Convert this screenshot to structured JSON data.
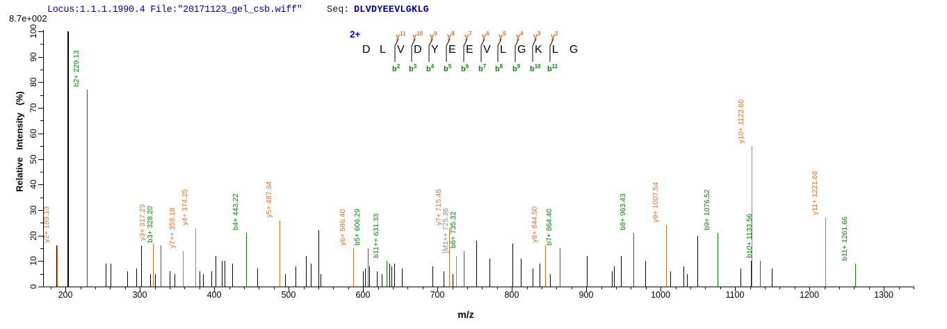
{
  "header": {
    "locus_line": "Locus:1.1.1.1990.4 File:\"20171123_gel_csb.wiff\"",
    "seq_label": "Seq:",
    "seq_value": "DLVDYEEVLGKLG",
    "max_intensity": "8.7e+002"
  },
  "chart_data": {
    "type": "bar",
    "subtype": "ms2-fragment-spectrum",
    "title": "",
    "xlabel": "m/z",
    "ylabel": "Relative Intensity (%)",
    "x_range": [
      170,
      1340
    ],
    "x_major_tick_start": 200,
    "x_major_tick_end": 1300,
    "x_major_tick_step": 100,
    "x_minor_tick_step": 20,
    "y_range": [
      0,
      100
    ],
    "y_major_tick_step": 10,
    "y_minor_tick_step": 5,
    "grid": false,
    "precursor_charge": "2+",
    "peptide": {
      "residues": [
        "D",
        "L",
        "V",
        "D",
        "Y",
        "E",
        "E",
        "V",
        "L",
        "G",
        "K",
        "L",
        "G"
      ],
      "cleavages": [
        {
          "after_residue": 2,
          "y_ion": "y11",
          "b_ion": "b2"
        },
        {
          "after_residue": 3,
          "y_ion": "y10",
          "b_ion": "b3"
        },
        {
          "after_residue": 4,
          "y_ion": "y9",
          "b_ion": "b4"
        },
        {
          "after_residue": 5,
          "y_ion": "y8",
          "b_ion": "b5"
        },
        {
          "after_residue": 6,
          "y_ion": "y7",
          "b_ion": "b6"
        },
        {
          "after_residue": 7,
          "y_ion": "y6",
          "b_ion": "b7"
        },
        {
          "after_residue": 8,
          "y_ion": "y5",
          "b_ion": "b8"
        },
        {
          "after_residue": 9,
          "y_ion": "y4",
          "b_ion": "b9"
        },
        {
          "after_residue": 10,
          "y_ion": "y3",
          "b_ion": "b10"
        },
        {
          "after_residue": 11,
          "y_ion": "y2",
          "b_ion": "b11"
        }
      ]
    },
    "labeled_peaks": [
      {
        "label": "y2+ 189.13",
        "mz": 189.13,
        "intensity_pct": 16,
        "series": "y"
      },
      {
        "label": "b2+ 229.13",
        "mz": 229.13,
        "intensity_pct": 77,
        "series": "b"
      },
      {
        "label": "y3+ 317.23",
        "mz": 317.23,
        "intensity_pct": 17,
        "series": "y"
      },
      {
        "label": "b3+ 328.20",
        "mz": 328.2,
        "intensity_pct": 16,
        "series": "b"
      },
      {
        "label": "y7++ 358.18",
        "mz": 358.18,
        "intensity_pct": 14,
        "series": "y"
      },
      {
        "label": "y4+ 374.25",
        "mz": 374.25,
        "intensity_pct": 23,
        "series": "y"
      },
      {
        "label": "b4+ 443.22",
        "mz": 443.22,
        "intensity_pct": 21,
        "series": "b"
      },
      {
        "label": "y5+ 487.34",
        "mz": 487.34,
        "intensity_pct": 26,
        "series": "y"
      },
      {
        "label": "y6+ 586.40",
        "mz": 586.4,
        "intensity_pct": 15,
        "series": "y"
      },
      {
        "label": "b5+ 606.29",
        "mz": 606.29,
        "intensity_pct": 15,
        "series": "b"
      },
      {
        "label": "b11++ 631.33",
        "mz": 631.33,
        "intensity_pct": 10,
        "series": "b"
      },
      {
        "label": "y7+ 715.45",
        "mz": 715.45,
        "intensity_pct": 23,
        "series": "y"
      },
      {
        "label": "[M1++ 725.36",
        "mz": 725.36,
        "intensity_pct": 12,
        "series": "precursor"
      },
      {
        "label": "b6+ 735.32",
        "mz": 735.32,
        "intensity_pct": 14,
        "series": "b"
      },
      {
        "label": "y8+ 844.50",
        "mz": 844.5,
        "intensity_pct": 16,
        "series": "y"
      },
      {
        "label": "b7+ 864.40",
        "mz": 864.4,
        "intensity_pct": 15,
        "series": "b"
      },
      {
        "label": "b8+ 963.43",
        "mz": 963.43,
        "intensity_pct": 21,
        "series": "b"
      },
      {
        "label": "y9+ 1007.54",
        "mz": 1007.54,
        "intensity_pct": 24,
        "series": "y"
      },
      {
        "label": "b9+ 1076.52",
        "mz": 1076.52,
        "intensity_pct": 21,
        "series": "b"
      },
      {
        "label": "y10+ 1122.60",
        "mz": 1122.6,
        "intensity_pct": 55,
        "series": "y"
      },
      {
        "label": "b10+ 1133.56",
        "mz": 1133.56,
        "intensity_pct": 10,
        "series": "b"
      },
      {
        "label": "y11+ 1221.68",
        "mz": 1221.68,
        "intensity_pct": 27,
        "series": "y"
      },
      {
        "label": "b11+ 1261.66",
        "mz": 1261.66,
        "intensity_pct": 9,
        "series": "b"
      }
    ],
    "unlabeled_peaks": [
      [
        188,
        16
      ],
      [
        203,
        100
      ],
      [
        254,
        9
      ],
      [
        261,
        9
      ],
      [
        283,
        6
      ],
      [
        295,
        7
      ],
      [
        302,
        16
      ],
      [
        314,
        5
      ],
      [
        320,
        5
      ],
      [
        340,
        6
      ],
      [
        347,
        5
      ],
      [
        380,
        6
      ],
      [
        385,
        5
      ],
      [
        396,
        6
      ],
      [
        402,
        12
      ],
      [
        410,
        10
      ],
      [
        414,
        10
      ],
      [
        424,
        9
      ],
      [
        458,
        7
      ],
      [
        495,
        5
      ],
      [
        509,
        8
      ],
      [
        523,
        12
      ],
      [
        530,
        9
      ],
      [
        540,
        22
      ],
      [
        543,
        5
      ],
      [
        600,
        6
      ],
      [
        603,
        7
      ],
      [
        608,
        8
      ],
      [
        619,
        6
      ],
      [
        625,
        5
      ],
      [
        635,
        9
      ],
      [
        638,
        8
      ],
      [
        642,
        9
      ],
      [
        652,
        7
      ],
      [
        693,
        8
      ],
      [
        708,
        6
      ],
      [
        720,
        5
      ],
      [
        752,
        18
      ],
      [
        770,
        11
      ],
      [
        801,
        17
      ],
      [
        812,
        11
      ],
      [
        828,
        7
      ],
      [
        837,
        9
      ],
      [
        851,
        5
      ],
      [
        901,
        12
      ],
      [
        934,
        6
      ],
      [
        937,
        8
      ],
      [
        947,
        12
      ],
      [
        979,
        10
      ],
      [
        1013,
        6
      ],
      [
        1031,
        8
      ],
      [
        1035,
        5
      ],
      [
        1049,
        20
      ],
      [
        1107,
        7
      ],
      [
        1121,
        10
      ],
      [
        1149,
        7
      ]
    ],
    "colors": {
      "y_ion": "#DE6F28",
      "b_ion": "#0C800C",
      "precursor": "#8C8C8C",
      "unlabeled_peak": "#000000",
      "header_text": "#00008B",
      "charge_label": "#0000CD",
      "axis": "#000000"
    }
  }
}
